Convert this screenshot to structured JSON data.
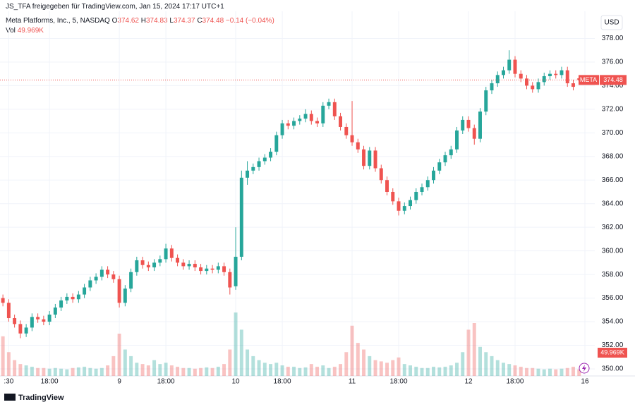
{
  "header": {
    "shared_by": "JS_TFA freigegeben für TradingView.com, Jan 15, 2024 17:17 UTC+1",
    "symbol": "Meta Platforms, Inc., 5, NASDAQ",
    "ohlc_prefixes": [
      "O",
      "H",
      "L",
      "C"
    ],
    "change": "−0.14 (−0.04%)",
    "volume_title": "Vol",
    "volume_label": "49.969K",
    "currency": "USD",
    "ticker": "META"
  },
  "footer": {
    "brand": "TradingView"
  },
  "chart_data": {
    "type": "candlestick",
    "up_color": "#26a69a",
    "down_color": "#ef5350",
    "xlim": [
      -0.5,
      101.7
    ],
    "xticks": [
      {
        "value": 1,
        "label": ":30"
      },
      {
        "value": 8,
        "label": "18:00"
      },
      {
        "value": 20,
        "label": "9"
      },
      {
        "value": 28,
        "label": "18:00"
      },
      {
        "value": 40,
        "label": "10"
      },
      {
        "value": 48,
        "label": "18:00"
      },
      {
        "value": 60,
        "label": "11"
      },
      {
        "value": 68,
        "label": "18:00"
      },
      {
        "value": 80,
        "label": "12"
      },
      {
        "value": 88,
        "label": "18:00"
      },
      {
        "value": 100,
        "label": "16"
      }
    ],
    "ylim": [
      349.4,
      380.3
    ],
    "yticks": [
      {
        "value": 350,
        "label": "350.00"
      },
      {
        "value": 352,
        "label": "352.00"
      },
      {
        "value": 354,
        "label": "354.00"
      },
      {
        "value": 356,
        "label": "356.00"
      },
      {
        "value": 358,
        "label": "358.00"
      },
      {
        "value": 360,
        "label": "360.00"
      },
      {
        "value": 362,
        "label": "362.00"
      },
      {
        "value": 364,
        "label": "364.00"
      },
      {
        "value": 366,
        "label": "366.00"
      },
      {
        "value": 368,
        "label": "368.00"
      },
      {
        "value": 370,
        "label": "370.00"
      },
      {
        "value": 372,
        "label": "372.00"
      },
      {
        "value": 374,
        "label": "374.00"
      },
      {
        "value": 376,
        "label": "376.00"
      },
      {
        "value": 378,
        "label": "378.00"
      }
    ],
    "grid": true,
    "open": [
      356.0,
      355.6,
      354.3,
      353.8,
      353.0,
      353.5,
      354.4,
      354.2,
      354.0,
      354.6,
      355.2,
      355.8,
      356.1,
      355.9,
      356.3,
      356.9,
      357.5,
      357.8,
      358.4,
      358.0,
      357.6,
      355.6,
      356.8,
      358.2,
      359.2,
      358.8,
      358.6,
      359.0,
      359.3,
      360.2,
      359.4,
      359.0,
      358.7,
      358.9,
      358.6,
      358.3,
      358.5,
      358.4,
      358.7,
      358.2,
      357.0,
      359.5,
      366.2,
      366.8,
      367.1,
      367.6,
      367.9,
      368.4,
      369.8,
      370.8,
      370.6,
      371.0,
      371.2,
      371.6,
      371.0,
      370.8,
      372.3,
      372.6,
      371.4,
      370.5,
      369.8,
      369.2,
      368.6,
      367.2,
      368.5,
      367.0,
      366.0,
      365.0,
      364.2,
      363.4,
      363.8,
      364.3,
      365.0,
      365.4,
      366.0,
      366.8,
      367.5,
      368.1,
      368.6,
      370.2,
      371.1,
      370.4,
      369.5,
      371.8,
      373.6,
      374.2,
      374.9,
      375.3,
      376.2,
      375.0,
      374.6,
      374.0,
      373.7,
      374.3,
      374.8,
      375.0,
      374.9,
      375.3,
      374.2,
      374.62
    ],
    "high": [
      356.3,
      355.9,
      354.6,
      354.1,
      353.8,
      354.7,
      354.7,
      354.5,
      354.9,
      355.5,
      356.1,
      356.4,
      356.4,
      356.6,
      357.2,
      357.8,
      358.1,
      358.7,
      358.7,
      358.3,
      357.9,
      357.1,
      358.5,
      359.5,
      359.5,
      359.1,
      359.3,
      359.6,
      360.6,
      360.5,
      359.7,
      359.3,
      359.2,
      359.2,
      358.9,
      358.8,
      358.8,
      359.0,
      359.0,
      358.5,
      362.0,
      366.8,
      367.6,
      367.4,
      367.9,
      368.2,
      368.7,
      370.1,
      371.1,
      371.1,
      371.3,
      371.5,
      372.0,
      371.9,
      371.3,
      372.6,
      372.9,
      372.9,
      371.7,
      370.8,
      372.7,
      369.5,
      368.9,
      368.8,
      368.8,
      367.3,
      366.3,
      365.3,
      364.5,
      364.1,
      364.6,
      365.3,
      365.7,
      366.3,
      367.1,
      367.8,
      368.4,
      368.9,
      370.5,
      371.4,
      371.4,
      370.7,
      372.1,
      373.9,
      374.5,
      375.2,
      375.6,
      377.0,
      376.5,
      375.3,
      374.9,
      374.3,
      374.6,
      375.1,
      375.3,
      375.3,
      375.6,
      375.6,
      374.5,
      374.83
    ],
    "low": [
      355.3,
      354.0,
      353.5,
      352.6,
      352.7,
      353.2,
      353.9,
      353.7,
      353.7,
      354.3,
      354.9,
      355.5,
      355.6,
      355.6,
      356.0,
      356.6,
      357.2,
      357.5,
      357.7,
      357.3,
      355.2,
      355.3,
      356.5,
      357.9,
      358.5,
      358.3,
      358.3,
      358.7,
      359.0,
      359.1,
      358.7,
      358.4,
      358.4,
      358.3,
      358.0,
      358.0,
      358.1,
      358.1,
      357.9,
      356.3,
      356.7,
      359.2,
      365.6,
      366.5,
      366.8,
      367.3,
      367.6,
      368.1,
      369.5,
      370.3,
      370.3,
      370.7,
      370.9,
      370.7,
      370.5,
      370.5,
      372.0,
      371.1,
      370.2,
      369.5,
      368.9,
      368.3,
      366.9,
      366.9,
      366.7,
      365.7,
      364.7,
      363.9,
      363.0,
      363.1,
      363.5,
      364.0,
      364.7,
      365.1,
      365.7,
      366.5,
      367.2,
      367.8,
      368.3,
      369.9,
      370.1,
      369.0,
      369.2,
      371.5,
      373.3,
      373.9,
      374.6,
      375.0,
      374.7,
      374.3,
      373.7,
      373.4,
      373.4,
      374.0,
      374.5,
      374.6,
      374.6,
      373.9,
      373.6,
      374.37
    ],
    "close": [
      355.6,
      354.3,
      353.8,
      353.0,
      353.5,
      354.4,
      354.2,
      354.0,
      354.6,
      355.2,
      355.8,
      356.1,
      355.9,
      356.3,
      356.9,
      357.5,
      357.8,
      358.4,
      358.0,
      357.6,
      355.6,
      356.8,
      358.2,
      359.2,
      358.8,
      358.6,
      359.0,
      359.3,
      360.2,
      359.4,
      359.0,
      358.7,
      358.9,
      358.6,
      358.3,
      358.5,
      358.4,
      358.7,
      358.2,
      356.9,
      359.5,
      366.2,
      366.8,
      367.1,
      367.6,
      367.9,
      368.4,
      369.8,
      370.8,
      370.6,
      371.0,
      371.2,
      371.6,
      371.0,
      370.8,
      372.3,
      372.6,
      371.4,
      370.5,
      369.8,
      369.2,
      368.6,
      367.2,
      368.5,
      367.0,
      366.0,
      365.0,
      364.2,
      363.4,
      363.8,
      364.3,
      365.0,
      365.4,
      366.0,
      366.8,
      367.5,
      368.1,
      368.6,
      370.2,
      371.1,
      370.4,
      369.5,
      371.8,
      373.6,
      374.2,
      374.9,
      375.3,
      376.2,
      375.0,
      374.6,
      374.0,
      373.7,
      374.3,
      374.8,
      375.0,
      374.9,
      375.3,
      374.2,
      373.9,
      374.48
    ],
    "volume": [
      300000,
      180000,
      120000,
      90000,
      80000,
      70000,
      60000,
      60000,
      55000,
      60000,
      55000,
      50000,
      60000,
      65000,
      70000,
      60000,
      55000,
      60000,
      80000,
      150000,
      320000,
      200000,
      150000,
      100000,
      90000,
      80000,
      120000,
      90000,
      100000,
      80000,
      70000,
      60000,
      60000,
      55000,
      60000,
      65000,
      60000,
      70000,
      90000,
      200000,
      480000,
      350000,
      200000,
      150000,
      120000,
      100000,
      90000,
      100000,
      80000,
      70000,
      70000,
      60000,
      65000,
      90000,
      70000,
      80000,
      60000,
      70000,
      90000,
      180000,
      380000,
      250000,
      200000,
      150000,
      120000,
      110000,
      100000,
      120000,
      140000,
      90000,
      80000,
      70000,
      60000,
      60000,
      70000,
      65000,
      70000,
      80000,
      100000,
      180000,
      350000,
      400000,
      220000,
      180000,
      150000,
      120000,
      100000,
      90000,
      80000,
      70000,
      60000,
      60000,
      55000,
      50000,
      55000,
      50000,
      55000,
      60000,
      70000,
      49969
    ]
  }
}
